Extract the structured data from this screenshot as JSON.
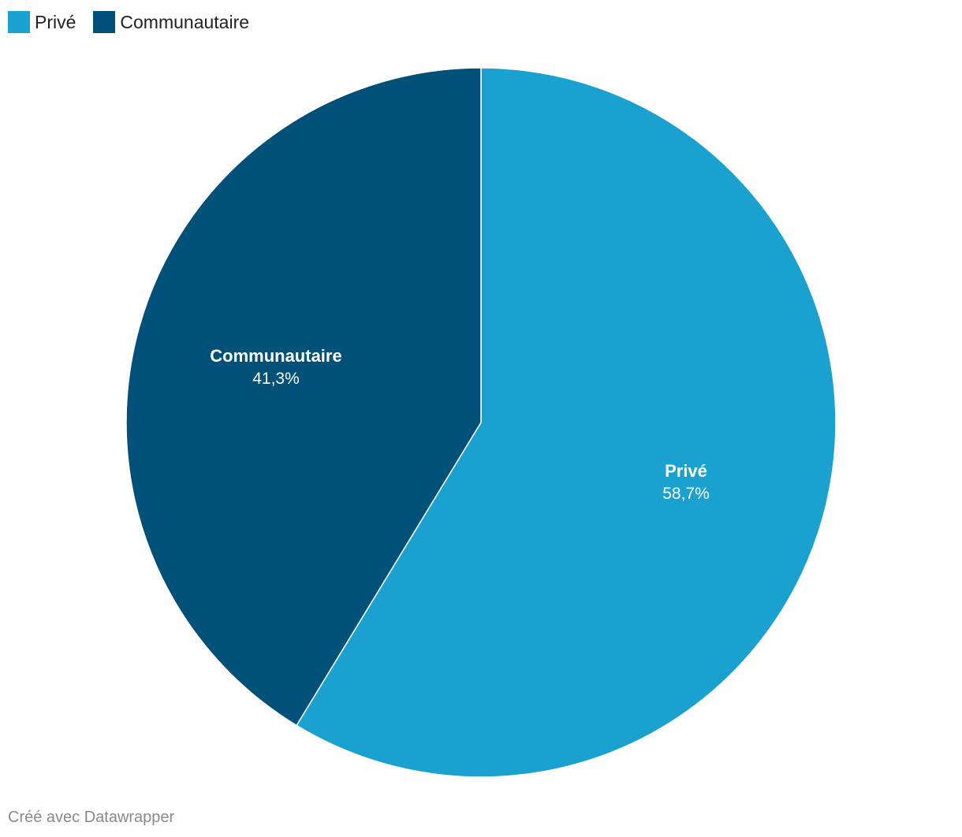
{
  "chart_data": {
    "type": "pie",
    "title": "",
    "legend_position": "top-left",
    "slices": [
      {
        "name": "Privé",
        "value": 58.7,
        "value_label": "58,7%",
        "color": "#1ba1cf"
      },
      {
        "name": "Communautaire",
        "value": 41.3,
        "value_label": "41,3%",
        "color": "#005179"
      }
    ]
  },
  "credit": "Créé avec Datawrapper"
}
